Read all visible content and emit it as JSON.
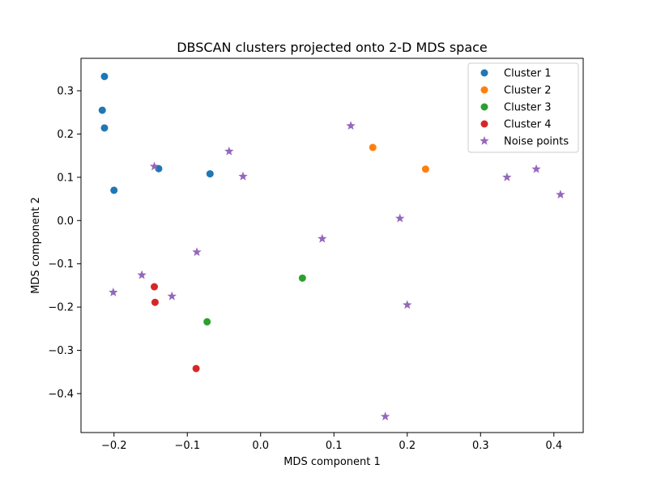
{
  "chart_data": {
    "type": "scatter",
    "title": "DBSCAN clusters projected onto 2-D MDS space",
    "xlabel": "MDS component 1",
    "ylabel": "MDS component 2",
    "xlim": [
      -0.245,
      0.44
    ],
    "ylim": [
      -0.49,
      0.375
    ],
    "xticks": [
      -0.2,
      -0.1,
      0.0,
      0.1,
      0.2,
      0.3,
      0.4
    ],
    "xtick_labels": [
      "−0.2",
      "−0.1",
      "0.0",
      "0.1",
      "0.2",
      "0.3",
      "0.4"
    ],
    "yticks": [
      -0.4,
      -0.3,
      -0.2,
      -0.1,
      0.0,
      0.1,
      0.2,
      0.3
    ],
    "ytick_labels": [
      "−0.4",
      "−0.3",
      "−0.2",
      "−0.1",
      "0.0",
      "0.1",
      "0.2",
      "0.3"
    ],
    "grid": false,
    "legend_position": "top-right",
    "series": [
      {
        "name": "Cluster 1",
        "marker": "circle",
        "color": "#1f77b4",
        "points": [
          [
            -0.213,
            0.333
          ],
          [
            -0.216,
            0.255
          ],
          [
            -0.213,
            0.214
          ],
          [
            -0.2,
            0.07
          ],
          [
            -0.139,
            0.12
          ],
          [
            -0.069,
            0.108
          ]
        ]
      },
      {
        "name": "Cluster 2",
        "marker": "circle",
        "color": "#ff7f0e",
        "points": [
          [
            0.153,
            0.169
          ],
          [
            0.225,
            0.119
          ]
        ]
      },
      {
        "name": "Cluster 3",
        "marker": "circle",
        "color": "#2ca02c",
        "points": [
          [
            0.057,
            -0.133
          ],
          [
            -0.073,
            -0.234
          ]
        ]
      },
      {
        "name": "Cluster 4",
        "marker": "circle",
        "color": "#d62728",
        "points": [
          [
            -0.145,
            -0.153
          ],
          [
            -0.144,
            -0.189
          ],
          [
            -0.088,
            -0.342
          ]
        ]
      },
      {
        "name": "Noise points",
        "marker": "star",
        "color": "#9467bd",
        "points": [
          [
            0.123,
            0.219
          ],
          [
            -0.043,
            0.16
          ],
          [
            -0.145,
            0.125
          ],
          [
            -0.024,
            0.102
          ],
          [
            0.336,
            0.1
          ],
          [
            0.376,
            0.119
          ],
          [
            0.409,
            0.06
          ],
          [
            0.19,
            0.005
          ],
          [
            0.084,
            -0.042
          ],
          [
            -0.087,
            -0.073
          ],
          [
            -0.162,
            -0.126
          ],
          [
            -0.201,
            -0.166
          ],
          [
            -0.121,
            -0.175
          ],
          [
            0.2,
            -0.195
          ],
          [
            0.17,
            -0.453
          ]
        ]
      }
    ]
  }
}
